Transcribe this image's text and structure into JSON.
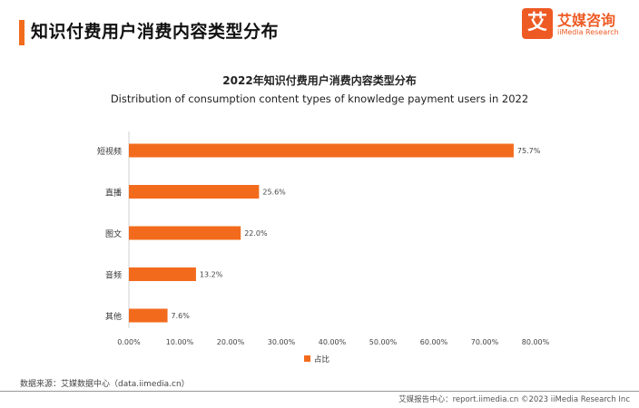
{
  "header": {
    "title": "知识付费用户消费内容类型分布"
  },
  "logo": {
    "mark": "艾",
    "name": "艾媒咨询",
    "subtitle": "iiMedia Research"
  },
  "chart_data": {
    "type": "bar",
    "orientation": "horizontal",
    "title": "2022年知识付费用户消费内容类型分布",
    "subtitle": "Distribution of consumption content types of knowledge payment users in 2022",
    "categories": [
      "短视频",
      "直播",
      "图文",
      "音频",
      "其他"
    ],
    "series": [
      {
        "name": "占比",
        "values": [
          75.7,
          25.6,
          22.0,
          13.2,
          7.6
        ],
        "color": "#f26b1d"
      }
    ],
    "value_labels": [
      "75.7%",
      "25.6%",
      "22.0%",
      "13.2%",
      "7.6%"
    ],
    "xlim": [
      0,
      80
    ],
    "x_ticks": [
      "0.00%",
      "10.00%",
      "20.00%",
      "30.00%",
      "40.00%",
      "50.00%",
      "60.00%",
      "70.00%",
      "80.00%"
    ],
    "grid": false,
    "legend_position": "bottom-center"
  },
  "footer": {
    "source": "数据来源：艾媒数据中心（data.iimedia.cn）",
    "report": "艾媒报告中心：report.iimedia.cn  ©2023  iiMedia Research  Inc"
  }
}
